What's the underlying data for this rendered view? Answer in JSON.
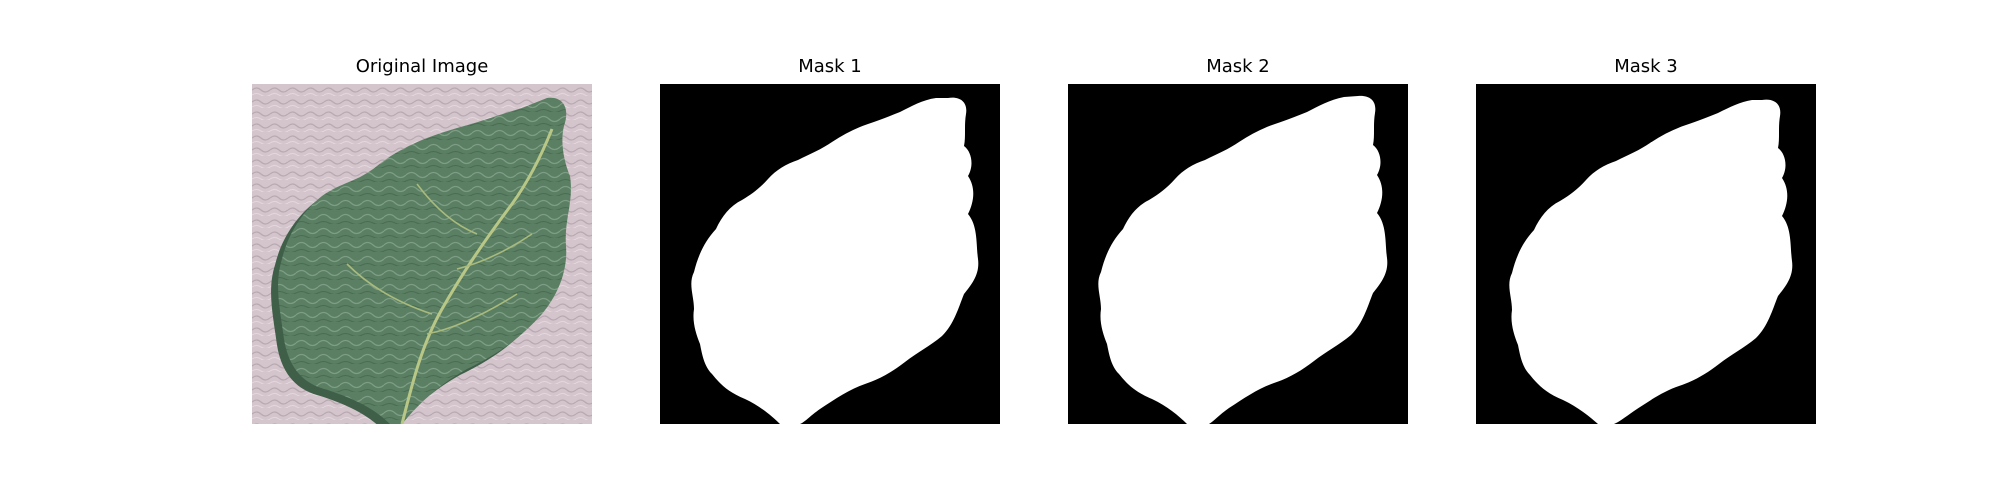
{
  "figure": {
    "panels": [
      {
        "title": "Original Image",
        "content": "leaf photograph"
      },
      {
        "title": "Mask 1",
        "content": "binary mask"
      },
      {
        "title": "Mask 2",
        "content": "binary mask"
      },
      {
        "title": "Mask 3",
        "content": "binary mask"
      }
    ]
  },
  "colors": {
    "background": "#ffffff",
    "mask_foreground": "#ffffff",
    "mask_background": "#000000",
    "leaf_main": "#5a7f63",
    "leaf_dark": "#3f5f49",
    "leaf_vein": "#b9c786",
    "surface": "#d4c4cb"
  }
}
